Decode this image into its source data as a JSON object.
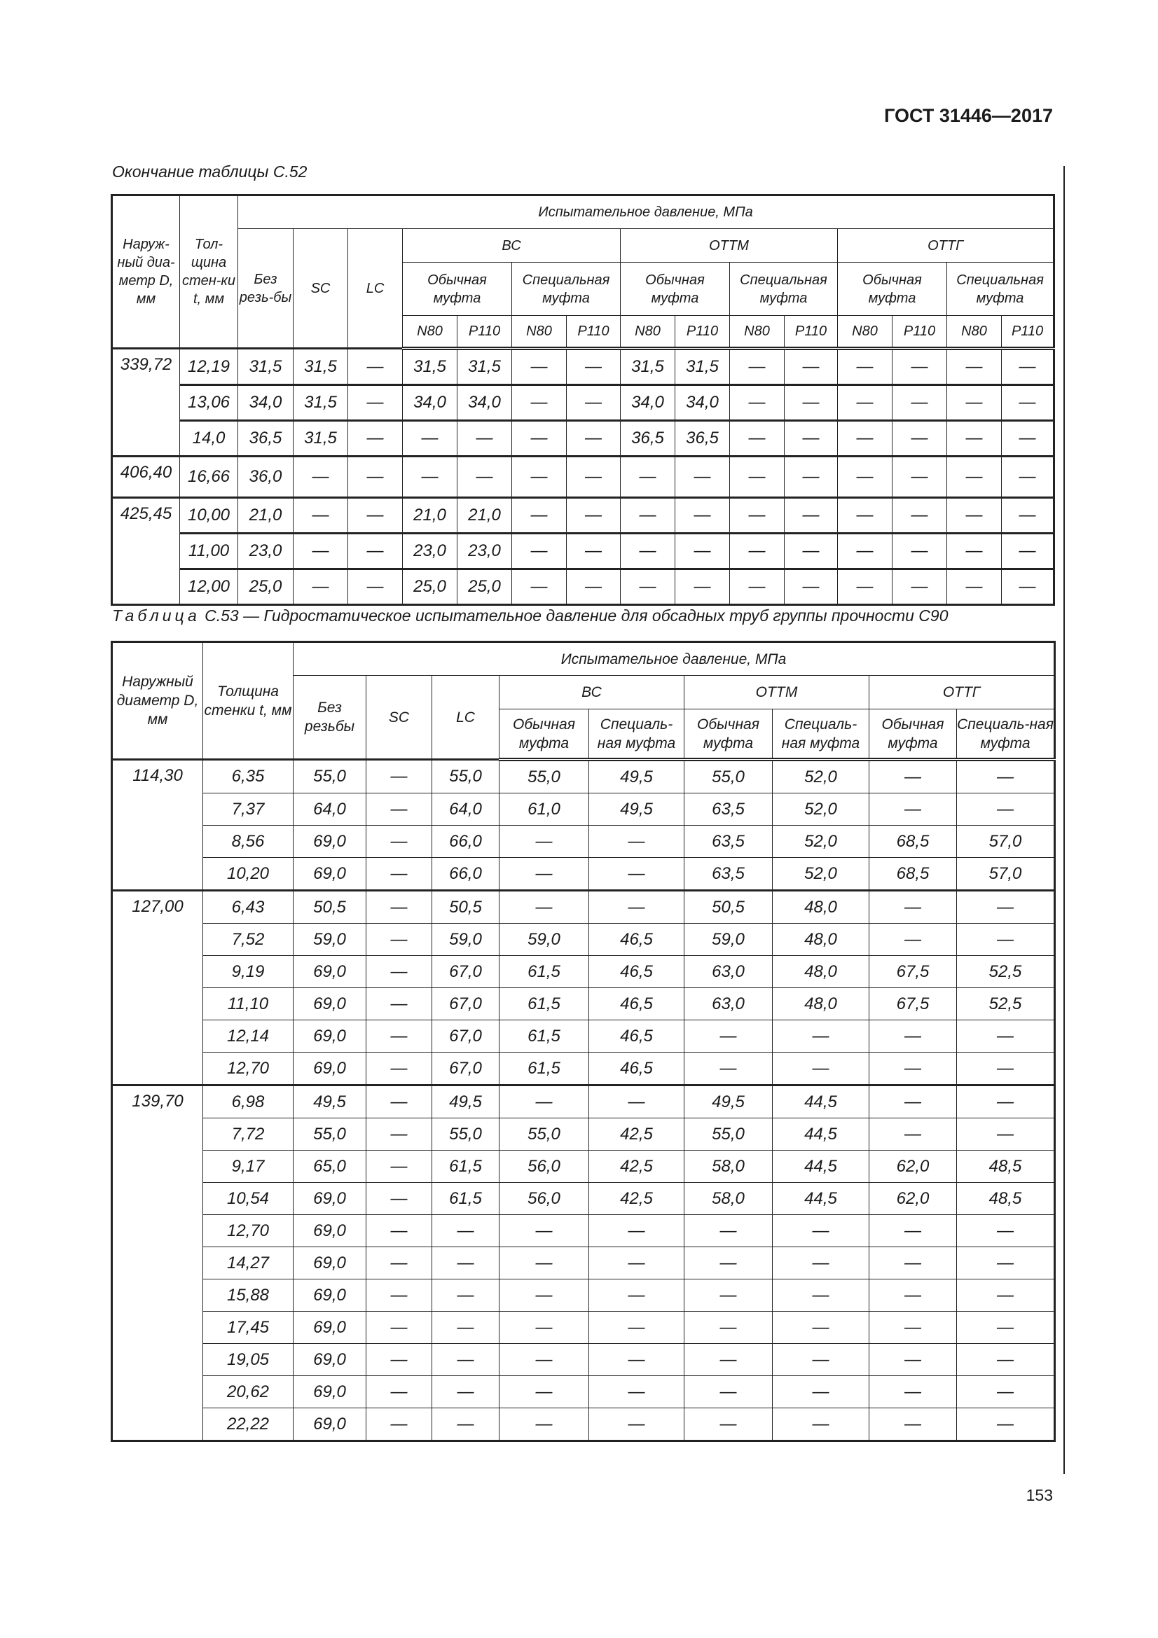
{
  "header": {
    "doc_code": "ГОСТ 31446—2017",
    "page_number": "153"
  },
  "table1": {
    "caption": "Окончание таблицы С.52",
    "headers": {
      "outer_diameter": "Наруж-ный диа-метр D, мм",
      "wall_thickness": "Тол-щина стен-ки t, мм",
      "test_pressure": "Испытательное давление, МПа",
      "no_thread": "Без резь-бы",
      "sc": "SC",
      "lc": "LC",
      "bc": "ВС",
      "ottm": "ОТТМ",
      "ottg": "ОТТГ",
      "regular": "Обычная муфта",
      "special": "Специальная муфта",
      "n80": "N80",
      "p110": "P110"
    },
    "groups": [
      {
        "d": "339,72",
        "rows": [
          {
            "t": "12,19",
            "v": [
              "31,5",
              "31,5",
              "—",
              "31,5",
              "31,5",
              "—",
              "—",
              "31,5",
              "31,5",
              "—",
              "—",
              "—",
              "—",
              "—",
              "—"
            ]
          },
          {
            "t": "13,06",
            "v": [
              "34,0",
              "31,5",
              "—",
              "34,0",
              "34,0",
              "—",
              "—",
              "34,0",
              "34,0",
              "—",
              "—",
              "—",
              "—",
              "—",
              "—"
            ]
          },
          {
            "t": "14,0",
            "v": [
              "36,5",
              "31,5",
              "—",
              "—",
              "—",
              "—",
              "—",
              "36,5",
              "36,5",
              "—",
              "—",
              "—",
              "—",
              "—",
              "—"
            ]
          }
        ]
      },
      {
        "d": "406,40",
        "rows": [
          {
            "t": "16,66",
            "v": [
              "36,0",
              "—",
              "—",
              "—",
              "—",
              "—",
              "—",
              "—",
              "—",
              "—",
              "—",
              "—",
              "—",
              "—",
              "—"
            ]
          }
        ]
      },
      {
        "d": "425,45",
        "rows": [
          {
            "t": "10,00",
            "v": [
              "21,0",
              "—",
              "—",
              "21,0",
              "21,0",
              "—",
              "—",
              "—",
              "—",
              "—",
              "—",
              "—",
              "—",
              "—",
              "—"
            ]
          },
          {
            "t": "11,00",
            "v": [
              "23,0",
              "—",
              "—",
              "23,0",
              "23,0",
              "—",
              "—",
              "—",
              "—",
              "—",
              "—",
              "—",
              "—",
              "—",
              "—"
            ]
          },
          {
            "t": "12,00",
            "v": [
              "25,0",
              "—",
              "—",
              "25,0",
              "25,0",
              "—",
              "—",
              "—",
              "—",
              "—",
              "—",
              "—",
              "—",
              "—",
              "—"
            ]
          }
        ]
      }
    ]
  },
  "table2": {
    "caption_prefix": "Таблица",
    "caption": " С.53 — Гидростатическое испытательное давление для обсадных труб группы прочности С90",
    "headers": {
      "outer_diameter": "Наружный диаметр D, мм",
      "wall_thickness": "Толщина стенки t, мм",
      "test_pressure": "Испытательное давление, МПа",
      "no_thread": "Без резьбы",
      "sc": "SC",
      "lc": "LC",
      "bc": "ВС",
      "ottm": "ОТТМ",
      "ottg": "ОТТГ",
      "regular": "Обычная муфта",
      "special": "Специаль-ная муфта"
    },
    "groups": [
      {
        "d": "114,30",
        "rows": [
          {
            "t": "6,35",
            "v": [
              "55,0",
              "—",
              "55,0",
              "55,0",
              "49,5",
              "55,0",
              "52,0",
              "—",
              "—"
            ]
          },
          {
            "t": "7,37",
            "v": [
              "64,0",
              "—",
              "64,0",
              "61,0",
              "49,5",
              "63,5",
              "52,0",
              "—",
              "—"
            ]
          },
          {
            "t": "8,56",
            "v": [
              "69,0",
              "—",
              "66,0",
              "—",
              "—",
              "63,5",
              "52,0",
              "68,5",
              "57,0"
            ]
          },
          {
            "t": "10,20",
            "v": [
              "69,0",
              "—",
              "66,0",
              "—",
              "—",
              "63,5",
              "52,0",
              "68,5",
              "57,0"
            ]
          }
        ]
      },
      {
        "d": "127,00",
        "rows": [
          {
            "t": "6,43",
            "v": [
              "50,5",
              "—",
              "50,5",
              "—",
              "—",
              "50,5",
              "48,0",
              "—",
              "—"
            ]
          },
          {
            "t": "7,52",
            "v": [
              "59,0",
              "—",
              "59,0",
              "59,0",
              "46,5",
              "59,0",
              "48,0",
              "—",
              "—"
            ]
          },
          {
            "t": "9,19",
            "v": [
              "69,0",
              "—",
              "67,0",
              "61,5",
              "46,5",
              "63,0",
              "48,0",
              "67,5",
              "52,5"
            ]
          },
          {
            "t": "11,10",
            "v": [
              "69,0",
              "—",
              "67,0",
              "61,5",
              "46,5",
              "63,0",
              "48,0",
              "67,5",
              "52,5"
            ]
          },
          {
            "t": "12,14",
            "v": [
              "69,0",
              "—",
              "67,0",
              "61,5",
              "46,5",
              "—",
              "—",
              "—",
              "—"
            ]
          },
          {
            "t": "12,70",
            "v": [
              "69,0",
              "—",
              "67,0",
              "61,5",
              "46,5",
              "—",
              "—",
              "—",
              "—"
            ]
          }
        ]
      },
      {
        "d": "139,70",
        "rows": [
          {
            "t": "6,98",
            "v": [
              "49,5",
              "—",
              "49,5",
              "—",
              "—",
              "49,5",
              "44,5",
              "—",
              "—"
            ]
          },
          {
            "t": "7,72",
            "v": [
              "55,0",
              "—",
              "55,0",
              "55,0",
              "42,5",
              "55,0",
              "44,5",
              "—",
              "—"
            ]
          },
          {
            "t": "9,17",
            "v": [
              "65,0",
              "—",
              "61,5",
              "56,0",
              "42,5",
              "58,0",
              "44,5",
              "62,0",
              "48,5"
            ]
          },
          {
            "t": "10,54",
            "v": [
              "69,0",
              "—",
              "61,5",
              "56,0",
              "42,5",
              "58,0",
              "44,5",
              "62,0",
              "48,5"
            ]
          },
          {
            "t": "12,70",
            "v": [
              "69,0",
              "—",
              "—",
              "—",
              "—",
              "—",
              "—",
              "—",
              "—"
            ]
          },
          {
            "t": "14,27",
            "v": [
              "69,0",
              "—",
              "—",
              "—",
              "—",
              "—",
              "—",
              "—",
              "—"
            ]
          },
          {
            "t": "15,88",
            "v": [
              "69,0",
              "—",
              "—",
              "—",
              "—",
              "—",
              "—",
              "—",
              "—"
            ]
          },
          {
            "t": "17,45",
            "v": [
              "69,0",
              "—",
              "—",
              "—",
              "—",
              "—",
              "—",
              "—",
              "—"
            ]
          },
          {
            "t": "19,05",
            "v": [
              "69,0",
              "—",
              "—",
              "—",
              "—",
              "—",
              "—",
              "—",
              "—"
            ]
          },
          {
            "t": "20,62",
            "v": [
              "69,0",
              "—",
              "—",
              "—",
              "—",
              "—",
              "—",
              "—",
              "—"
            ]
          },
          {
            "t": "22,22",
            "v": [
              "69,0",
              "—",
              "—",
              "—",
              "—",
              "—",
              "—",
              "—",
              "—"
            ]
          }
        ]
      }
    ]
  }
}
